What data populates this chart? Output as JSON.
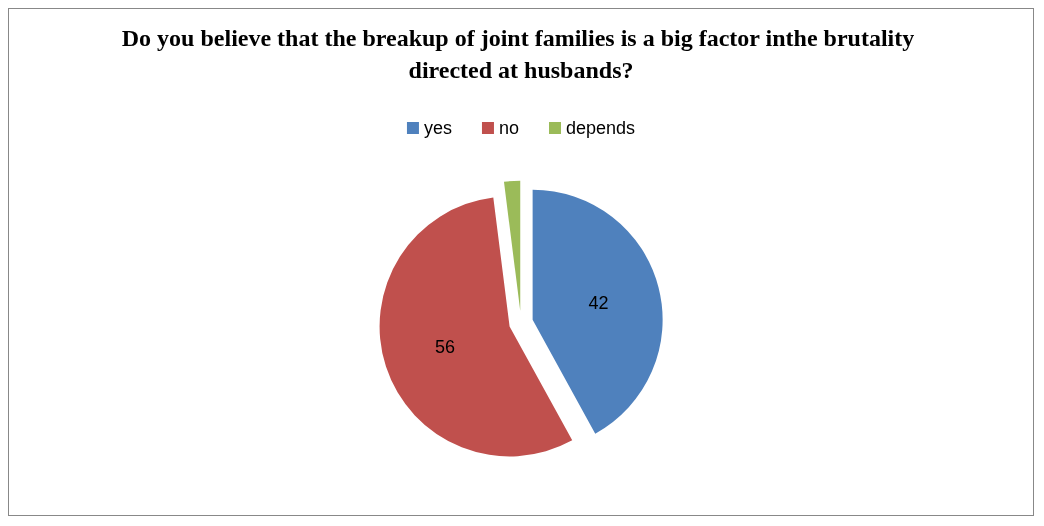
{
  "chart_data": {
    "type": "pie",
    "title": "Do you believe that the breakup of joint families is a big factor inthe brutality directed at husbands?",
    "categories": [
      "yes",
      "no",
      "depends"
    ],
    "values": [
      42,
      56,
      2
    ],
    "colors": [
      "#4f81bd",
      "#c0504d",
      "#9bbb59"
    ],
    "value_labels": [
      "42",
      "56",
      null
    ],
    "legend": "top"
  }
}
